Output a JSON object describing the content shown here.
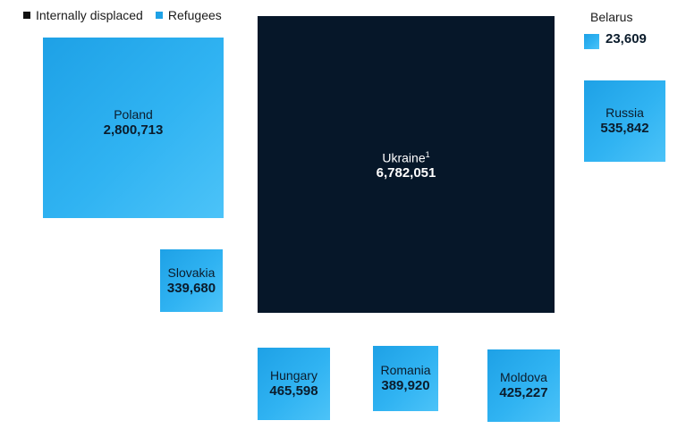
{
  "legend": {
    "items": [
      {
        "label": "Internally displaced",
        "color": "#111111"
      },
      {
        "label": "Refugees",
        "color": "#1ea1e6"
      }
    ]
  },
  "chart_data": {
    "type": "proportional-squares",
    "series": [
      {
        "name": "Internally displaced",
        "points": [
          {
            "label": "Ukraine",
            "footnote": "1",
            "value": 6782051,
            "value_label": "6,782,051"
          }
        ]
      },
      {
        "name": "Refugees",
        "points": [
          {
            "label": "Poland",
            "value": 2800713,
            "value_label": "2,800,713"
          },
          {
            "label": "Russia",
            "value": 535842,
            "value_label": "535,842"
          },
          {
            "label": "Hungary",
            "value": 465598,
            "value_label": "465,598"
          },
          {
            "label": "Moldova",
            "value": 425227,
            "value_label": "425,227"
          },
          {
            "label": "Romania",
            "value": 389920,
            "value_label": "389,920"
          },
          {
            "label": "Slovakia",
            "value": 339680,
            "value_label": "339,680"
          },
          {
            "label": "Belarus",
            "value": 23609,
            "value_label": "23,609"
          }
        ]
      }
    ],
    "colors": {
      "internally_displaced": "#061729",
      "refugees": "#1ea1e6"
    }
  }
}
